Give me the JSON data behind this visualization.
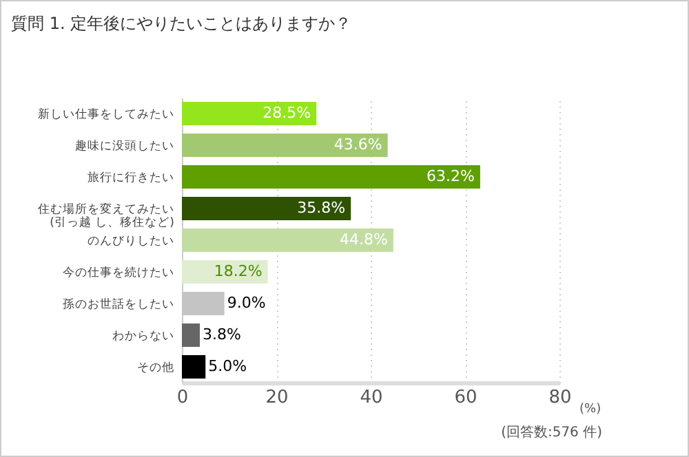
{
  "chart_data": {
    "type": "bar",
    "orientation": "horizontal",
    "title": "質問 1.  定年後にやりたいことはありますか？",
    "xlabel": "(%)",
    "categories": [
      "新しい仕事をしてみたい",
      "趣味に没頭したい",
      "旅行に行きたい",
      "住む場所を変えてみたい\n(引っ越 し、移住など)",
      "のんびりしたい",
      "今の仕事を続けたい",
      "孫のお世話をしたい",
      "わからない",
      "その他"
    ],
    "values": [
      28.5,
      43.6,
      63.2,
      35.8,
      44.8,
      18.2,
      9.0,
      3.8,
      5.0
    ],
    "colors": [
      "#93e61c",
      "#a2c972",
      "#5fa000",
      "#2e5200",
      "#c2dda2",
      "#e0edd0",
      "#c4c4c4",
      "#666666",
      "#000000"
    ],
    "value_labels": [
      "28.5%",
      "43.6%",
      "63.2%",
      "35.8%",
      "44.8%",
      "18.2%",
      "9.0%",
      "3.8%",
      "5.0%"
    ],
    "xlim": [
      0,
      80
    ],
    "xticks": [
      0,
      20,
      40,
      60,
      80
    ],
    "grid": "x",
    "annotations": [
      "(回答数:576 件)"
    ]
  }
}
